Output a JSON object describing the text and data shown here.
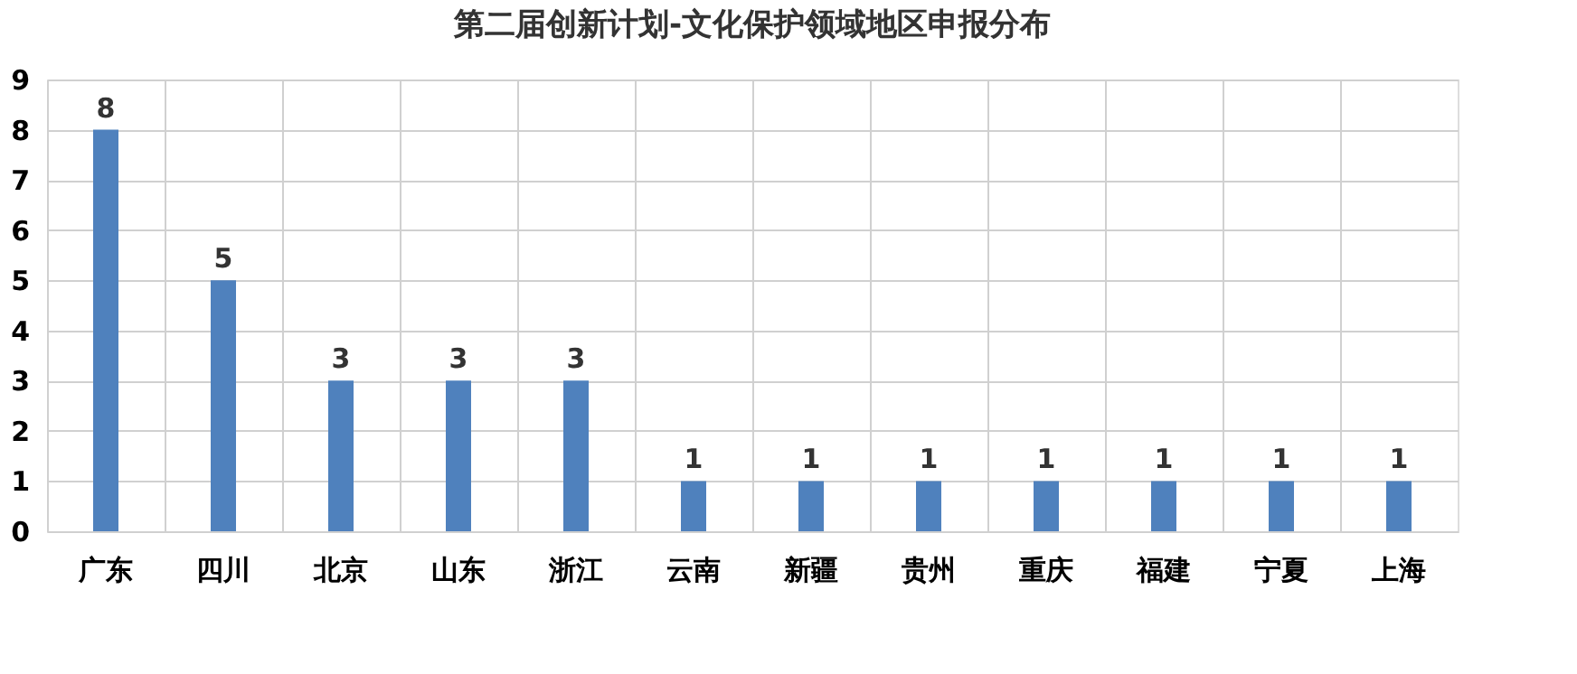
{
  "chart_data": {
    "type": "bar",
    "title": "第二届创新计划-文化保护领域地区申报分布",
    "categories": [
      "广东",
      "四川",
      "北京",
      "山东",
      "浙江",
      "云南",
      "新疆",
      "贵州",
      "重庆",
      "福建",
      "宁夏",
      "上海"
    ],
    "values": [
      8,
      5,
      3,
      3,
      3,
      1,
      1,
      1,
      1,
      1,
      1,
      1
    ],
    "color": "#4f81bd",
    "ylim": [
      0,
      9
    ],
    "yticks": [
      0,
      1,
      2,
      3,
      4,
      5,
      6,
      7,
      8,
      9
    ],
    "grid": true,
    "data_labels": true
  }
}
